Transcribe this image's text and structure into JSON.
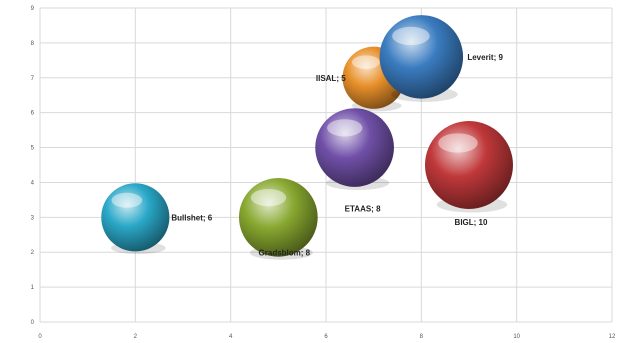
{
  "chart_data": {
    "type": "bubble",
    "xlim": [
      0,
      12
    ],
    "ylim": [
      0,
      9
    ],
    "x_ticks": [
      0,
      2,
      4,
      6,
      8,
      10,
      12
    ],
    "y_ticks": [
      0,
      1,
      2,
      3,
      4,
      5,
      6,
      7,
      8,
      9
    ],
    "grid": true,
    "legend": "none",
    "points": [
      {
        "label": "Bullshet; 6",
        "x": 2.0,
        "y": 3.0,
        "size": 6,
        "color": "#2aa8c8"
      },
      {
        "label": "Gradsblom; 8",
        "x": 5.0,
        "y": 3.0,
        "size": 8,
        "color": "#88a830"
      },
      {
        "label": "ETAAS; 8",
        "x": 6.6,
        "y": 5.0,
        "size": 8,
        "color": "#7050a8"
      },
      {
        "label": "IISAL; 5",
        "x": 7.0,
        "y": 7.0,
        "size": 5,
        "color": "#e8902a"
      },
      {
        "label": "Leverit; 9",
        "x": 8.0,
        "y": 7.6,
        "size": 9,
        "color": "#3a7cc0"
      },
      {
        "label": "BIGL; 10",
        "x": 9.0,
        "y": 4.5,
        "size": 10,
        "color": "#c0383a"
      }
    ]
  }
}
